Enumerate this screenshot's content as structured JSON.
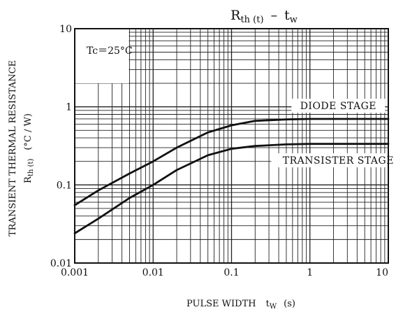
{
  "chart_data": {
    "type": "line",
    "title": {
      "lhs_symbol": "R",
      "lhs_subscript": "th (t)",
      "dash": "–",
      "rhs_symbol": "t",
      "rhs_subscript": "w"
    },
    "xlabel": {
      "text": "PULSE WIDTH",
      "symbol": "t",
      "subscript": "W",
      "unit": "(s)"
    },
    "ylabel": {
      "line1": "TRANSIENT THERMAL RESISTANCE",
      "symbol": "R",
      "subscript": "th (t)",
      "unit": "(°C / W)"
    },
    "x_scale": "log",
    "y_scale": "log",
    "xlim": [
      0.001,
      10
    ],
    "ylim": [
      0.01,
      10
    ],
    "grid": true,
    "x_ticks": [
      {
        "value": 0.001,
        "label": "0.001"
      },
      {
        "value": 0.01,
        "label": "0.01"
      },
      {
        "value": 0.1,
        "label": "0.1"
      },
      {
        "value": 1,
        "label": "1"
      },
      {
        "value": 10,
        "label": "10"
      }
    ],
    "y_ticks": [
      {
        "value": 0.01,
        "label": "0.01"
      },
      {
        "value": 0.1,
        "label": "0.1"
      },
      {
        "value": 1,
        "label": "1"
      },
      {
        "value": 10,
        "label": "10"
      }
    ],
    "condition_note": "Tc＝25°C",
    "series": [
      {
        "name": "DIODE STAGE",
        "x": [
          0.001,
          0.002,
          0.005,
          0.01,
          0.02,
          0.05,
          0.1,
          0.2,
          0.5,
          1,
          2,
          5,
          10
        ],
        "y": [
          0.055,
          0.085,
          0.14,
          0.2,
          0.3,
          0.47,
          0.58,
          0.66,
          0.69,
          0.7,
          0.7,
          0.7,
          0.7
        ]
      },
      {
        "name": "TRANSISTER STAGE",
        "x": [
          0.001,
          0.002,
          0.005,
          0.01,
          0.02,
          0.05,
          0.1,
          0.2,
          0.5,
          1,
          2,
          5,
          10
        ],
        "y": [
          0.024,
          0.037,
          0.068,
          0.1,
          0.155,
          0.24,
          0.29,
          0.315,
          0.33,
          0.335,
          0.335,
          0.335,
          0.335
        ]
      }
    ]
  }
}
